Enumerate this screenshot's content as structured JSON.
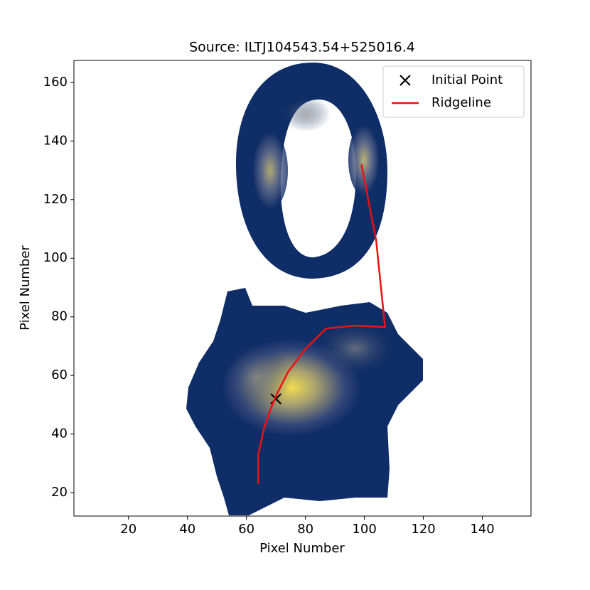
{
  "chart_data": {
    "type": "line",
    "title": "Source: ILTJ104543.54+525016.4",
    "xlabel": "Pixel Number",
    "ylabel": "Pixel Number",
    "xlim": [
      1.5,
      156.5
    ],
    "ylim": [
      12,
      167.5
    ],
    "xticks": [
      20,
      40,
      60,
      80,
      100,
      120,
      140
    ],
    "yticks": [
      20,
      40,
      60,
      80,
      100,
      120,
      140,
      160
    ],
    "legend": "upper right",
    "series": [
      {
        "name": "Initial Point",
        "type": "scatter",
        "marker": "x",
        "color": "#000000",
        "x": [
          70
        ],
        "y": [
          52
        ]
      },
      {
        "name": "Ridgeline",
        "type": "line",
        "color": "#ee1111",
        "x": [
          64,
          64,
          66,
          68,
          70,
          74,
          80,
          87,
          97,
          107,
          104,
          99
        ],
        "y": [
          23,
          33,
          42,
          48,
          53,
          61,
          69,
          76,
          77,
          76.5,
          106,
          132
        ]
      }
    ]
  }
}
